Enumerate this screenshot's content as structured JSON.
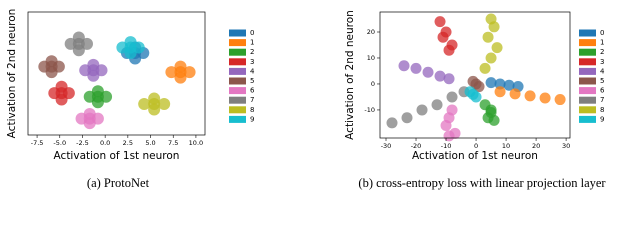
{
  "chart_data": [
    {
      "type": "scatter",
      "caption": "(a) ProtoNet",
      "x_label": "Activation of 1st neuron",
      "y_label": "Activation of 2nd neuron",
      "xlim": [
        -8.5,
        11
      ],
      "ylim": [
        -6,
        7.5
      ],
      "xticks": [
        {
          "value": -7.5,
          "label": "-7.5"
        },
        {
          "value": -5,
          "label": "-5.0"
        },
        {
          "value": -2.5,
          "label": "-2.5"
        },
        {
          "value": 0,
          "label": "0.0"
        },
        {
          "value": 2.5,
          "label": "2.5"
        },
        {
          "value": 5,
          "label": "5.0"
        },
        {
          "value": 7.5,
          "label": "7.5"
        },
        {
          "value": 10,
          "label": "10.0"
        }
      ],
      "series": [
        {
          "name": "0",
          "color": "#1f77b4",
          "x": [
            3.3,
            2.4,
            4.2,
            3.3,
            3.3
          ],
          "values": [
            3.0,
            3.0,
            3.0,
            3.6,
            2.4
          ]
        },
        {
          "name": "1",
          "color": "#ff7f0e",
          "x": [
            8.3,
            7.3,
            9.3,
            8.3,
            8.3
          ],
          "values": [
            0.9,
            0.9,
            0.9,
            1.5,
            0.3
          ]
        },
        {
          "name": "2",
          "color": "#2ca02c",
          "x": [
            -0.8,
            -1.7,
            0.1,
            -0.8,
            -0.8
          ],
          "values": [
            -1.8,
            -1.8,
            -1.8,
            -1.2,
            -2.4
          ]
        },
        {
          "name": "3",
          "color": "#d62728",
          "x": [
            -4.8,
            -5.6,
            -4.0,
            -4.8,
            -4.8
          ],
          "values": [
            -1.4,
            -1.4,
            -1.4,
            -0.7,
            -2.1
          ]
        },
        {
          "name": "4",
          "color": "#9467bd",
          "x": [
            -1.3,
            -2.2,
            -0.4,
            -1.3,
            -1.3
          ],
          "values": [
            1.1,
            1.1,
            1.1,
            1.7,
            0.5
          ]
        },
        {
          "name": "5",
          "color": "#8c564b",
          "x": [
            -5.9,
            -6.7,
            -5.1,
            -5.9,
            -5.9
          ],
          "values": [
            1.5,
            1.5,
            1.5,
            2.1,
            0.9
          ]
        },
        {
          "name": "6",
          "color": "#e377c2",
          "x": [
            -1.7,
            -2.6,
            -0.8,
            -1.7,
            -1.7
          ],
          "values": [
            -4.2,
            -4.2,
            -4.2,
            -3.7,
            -4.7
          ]
        },
        {
          "name": "7",
          "color": "#7f7f7f",
          "x": [
            -2.9,
            -3.8,
            -2.0,
            -2.9,
            -2.9
          ],
          "values": [
            4.0,
            4.0,
            4.0,
            4.7,
            3.3
          ]
        },
        {
          "name": "8",
          "color": "#bcbd22",
          "x": [
            5.4,
            4.3,
            6.5,
            5.4,
            5.4
          ],
          "values": [
            -2.6,
            -2.6,
            -2.6,
            -2.0,
            -3.2
          ]
        },
        {
          "name": "9",
          "color": "#17becf",
          "x": [
            2.8,
            1.9,
            3.7,
            2.8,
            2.8
          ],
          "values": [
            3.6,
            3.6,
            3.6,
            4.2,
            3.0
          ]
        }
      ]
    },
    {
      "type": "scatter",
      "caption": "(b) cross-entropy loss with linear projection layer",
      "x_label": "Activation of 1st neuron",
      "y_label": "Activation of 2nd neuron",
      "xlim": [
        -32,
        31.3
      ],
      "ylim": [
        -20.8,
        27.7
      ],
      "xticks": [
        -30,
        -20,
        -10,
        0,
        10,
        20,
        30
      ],
      "yticks": [
        -10,
        0,
        10,
        20
      ],
      "series": [
        {
          "name": "0",
          "color": "#1f77b4",
          "x": [
            5,
            8,
            11,
            14
          ],
          "values": [
            0.5,
            0,
            -0.5,
            -1
          ]
        },
        {
          "name": "1",
          "color": "#ff7f0e",
          "x": [
            8,
            13,
            18,
            23,
            28
          ],
          "values": [
            -3,
            -3.8,
            -4.6,
            -5.4,
            -6
          ]
        },
        {
          "name": "2",
          "color": "#2ca02c",
          "x": [
            3,
            5,
            4,
            6,
            5
          ],
          "values": [
            -8,
            -10,
            -13,
            -14,
            -11
          ]
        },
        {
          "name": "3",
          "color": "#d62728",
          "x": [
            -12,
            -10,
            -8,
            -11,
            -9
          ],
          "values": [
            24,
            20,
            15,
            18,
            13
          ]
        },
        {
          "name": "4",
          "color": "#9467bd",
          "x": [
            -24,
            -20,
            -16,
            -12,
            -9
          ],
          "values": [
            7,
            6,
            4.5,
            3,
            2
          ]
        },
        {
          "name": "5",
          "color": "#8c564b",
          "x": [
            -1,
            0,
            1
          ],
          "values": [
            1,
            0,
            -1
          ]
        },
        {
          "name": "6",
          "color": "#e377c2",
          "x": [
            -8,
            -9,
            -10,
            -7,
            -9
          ],
          "values": [
            -10,
            -13,
            -16,
            -19,
            -20
          ]
        },
        {
          "name": "7",
          "color": "#7f7f7f",
          "x": [
            -28,
            -23,
            -18,
            -13,
            -8,
            -4
          ],
          "values": [
            -15,
            -13,
            -10,
            -8,
            -5,
            -3
          ]
        },
        {
          "name": "8",
          "color": "#bcbd22",
          "x": [
            3,
            5,
            7,
            4,
            6,
            5
          ],
          "values": [
            6,
            10,
            14,
            18,
            22,
            25
          ]
        },
        {
          "name": "9",
          "color": "#17becf",
          "x": [
            -2,
            -1,
            0
          ],
          "values": [
            -3,
            -4,
            -5
          ]
        }
      ]
    }
  ]
}
